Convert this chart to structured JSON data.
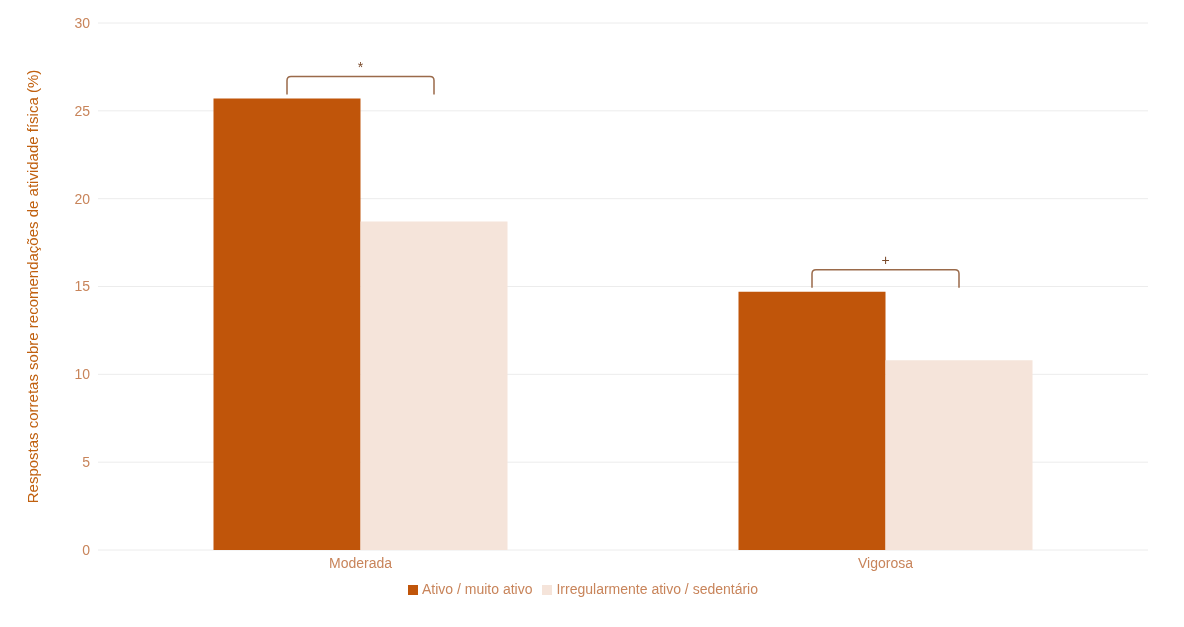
{
  "chart_data": {
    "type": "bar",
    "ylabel": "Respostas corretas sobre recomendações de atividade física (%)",
    "categories": [
      "Moderada",
      "Vigorosa"
    ],
    "series": [
      {
        "name": "Ativo / muito ativo",
        "color": "#c0550a",
        "values": [
          25.7,
          14.7
        ]
      },
      {
        "name": "Irregularmente ativo / sedentário",
        "color": "#f5e4da",
        "values": [
          18.7,
          10.8
        ]
      }
    ],
    "ylim": [
      0,
      30
    ],
    "yticks": [
      0,
      5,
      10,
      15,
      20,
      25,
      30
    ],
    "grid": "y",
    "legend": "bottom",
    "annotations": [
      "*",
      "+"
    ]
  }
}
